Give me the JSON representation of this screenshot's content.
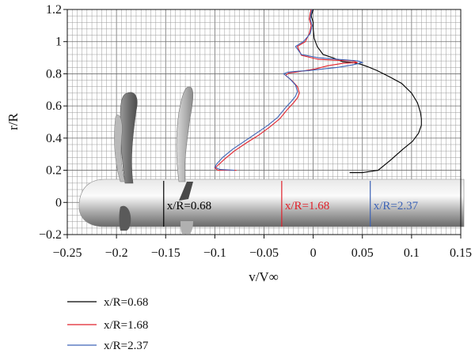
{
  "chart_data": {
    "type": "line",
    "xlabel": "v/V∞",
    "ylabel": "r/R",
    "xlim": [
      -0.25,
      0.15
    ],
    "ylim": [
      -0.2,
      1.2
    ],
    "x_ticks": [
      "−0.25",
      "−0.2",
      "−0.15",
      "−0.1",
      "−0.05",
      "0",
      "0.05",
      "0.1",
      "0.15"
    ],
    "y_ticks": [
      "−0.2",
      "0",
      "0.2",
      "0.4",
      "0.6",
      "0.8",
      "1",
      "1.2"
    ],
    "grid": "on (minor grid)",
    "legend": "below plot, left",
    "series": [
      {
        "name": "x/R=0.68",
        "color": "#000000",
        "x": [
          0.037,
          0.05,
          0.066,
          0.078,
          0.091,
          0.101,
          0.107,
          0.11,
          0.11,
          0.109,
          0.106,
          0.1,
          0.09,
          0.078,
          0.065,
          0.055,
          0.048,
          0.04,
          0.03,
          0.02,
          0.01,
          0.004,
          0.001,
          0,
          0,
          -0.002,
          0
        ],
        "y": [
          0.185,
          0.185,
          0.2,
          0.26,
          0.33,
          0.38,
          0.43,
          0.48,
          0.52,
          0.56,
          0.62,
          0.68,
          0.74,
          0.78,
          0.82,
          0.845,
          0.86,
          0.87,
          0.875,
          0.9,
          0.92,
          0.97,
          1.02,
          1.08,
          1.12,
          1.16,
          1.2
        ]
      },
      {
        "name": "x/R=1.68",
        "color": "#e0202a",
        "x": [
          -0.078,
          -0.097,
          -0.1,
          -0.097,
          -0.09,
          -0.08,
          -0.068,
          -0.055,
          -0.044,
          -0.034,
          -0.026,
          -0.02,
          -0.016,
          -0.014,
          -0.016,
          -0.022,
          -0.028,
          -0.025,
          -0.018,
          -0.008,
          0.002,
          0.015,
          0.03,
          0.045,
          0.04,
          0.02,
          0.005,
          -0.012,
          -0.016,
          -0.008,
          -0.004,
          -0.002,
          -0.004,
          -0.003,
          -0.002
        ],
        "y": [
          0.2,
          0.2,
          0.215,
          0.23,
          0.27,
          0.32,
          0.37,
          0.42,
          0.47,
          0.52,
          0.58,
          0.62,
          0.65,
          0.68,
          0.72,
          0.76,
          0.79,
          0.805,
          0.81,
          0.82,
          0.83,
          0.85,
          0.865,
          0.87,
          0.88,
          0.885,
          0.89,
          0.915,
          0.97,
          1.0,
          1.05,
          1.1,
          1.14,
          1.18,
          1.2
        ]
      },
      {
        "name": "x/R=2.37",
        "color": "#3d63b6",
        "x": [
          -0.08,
          -0.095,
          -0.1,
          -0.098,
          -0.092,
          -0.082,
          -0.07,
          -0.058,
          -0.046,
          -0.036,
          -0.028,
          -0.022,
          -0.018,
          -0.016,
          -0.018,
          -0.024,
          -0.03,
          -0.026,
          -0.018,
          -0.005,
          0.01,
          0.025,
          0.04,
          0.05,
          0.045,
          0.025,
          0.005,
          -0.012,
          -0.018,
          -0.01,
          -0.003,
          -0.001,
          -0.003,
          -0.002,
          -0.001
        ],
        "y": [
          0.2,
          0.205,
          0.22,
          0.24,
          0.28,
          0.33,
          0.38,
          0.43,
          0.48,
          0.53,
          0.59,
          0.63,
          0.66,
          0.69,
          0.73,
          0.77,
          0.8,
          0.81,
          0.815,
          0.82,
          0.83,
          0.84,
          0.855,
          0.87,
          0.88,
          0.89,
          0.9,
          0.92,
          0.97,
          1.0,
          1.05,
          1.1,
          1.14,
          1.18,
          1.2
        ]
      }
    ],
    "annotations": [
      {
        "text": "x/R=0.68",
        "x": -0.152,
        "color": "#000000"
      },
      {
        "text": "x/R=1.68",
        "x": -0.032,
        "color": "#e0202a"
      },
      {
        "text": "x/R=2.37",
        "x": 0.058,
        "color": "#3d63b6"
      }
    ]
  }
}
